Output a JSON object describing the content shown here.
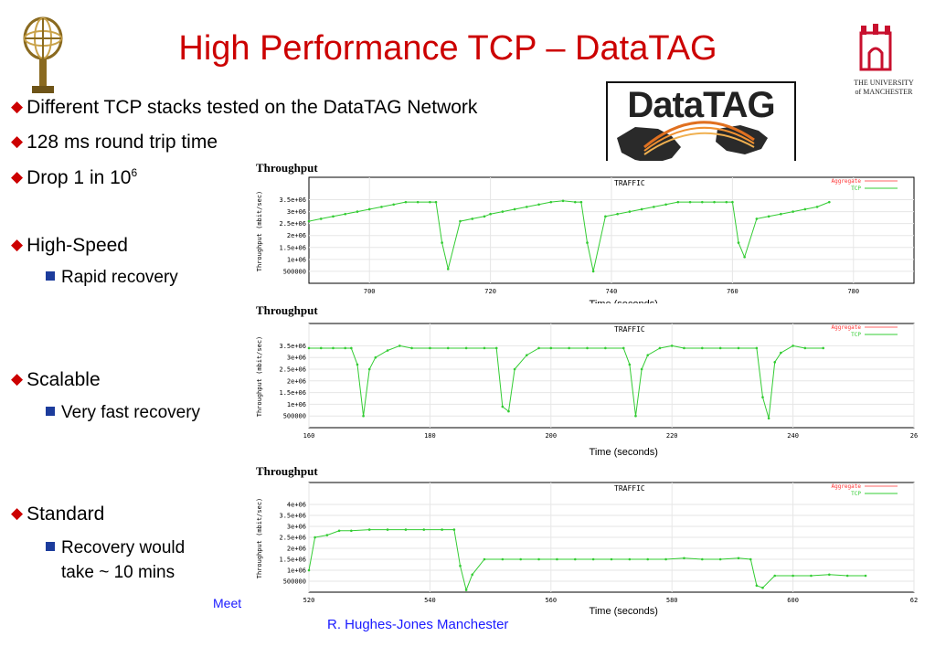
{
  "slide": {
    "title": "High Performance TCP – DataTAG",
    "bullets": [
      {
        "text": "Different TCP stacks tested on the DataTAG Network"
      },
      {
        "text": "128 ms round trip time"
      },
      {
        "text": "Drop 1 in 10",
        "sup": "6"
      },
      {
        "text": "High-Speed"
      },
      {
        "text": "Scalable"
      },
      {
        "text": "Standard"
      }
    ],
    "subbullets": [
      {
        "text": "Rapid recovery"
      },
      {
        "text": "Very fast recovery"
      },
      {
        "text": "Recovery would"
      },
      {
        "text": "take ~ 10 mins"
      }
    ],
    "footer_left": "Meet",
    "footer_center": "R. Hughes-Jones  Manchester",
    "datatag_logo_text": "DataTAG",
    "university_lines": [
      "THE UNIVERSITY",
      "of MANCHESTER"
    ],
    "colors": {
      "title": "#cc0000",
      "bullet_marker": "#cc0000",
      "sub_marker": "#1c3c9c",
      "footer": "#1a1aff",
      "tcp_line": "#33cc33",
      "aggregate_line": "#ff6666"
    }
  },
  "chart_data": [
    {
      "type": "line",
      "panel_label": "Throughput",
      "title": "TRAFFIC",
      "xlabel": "Time (seconds)",
      "ylabel": "Throughput (mbit/sec)",
      "xlim": [
        690,
        790
      ],
      "ylim": [
        0,
        3750000
      ],
      "xticks": [
        "700",
        "720",
        "740",
        "760",
        "780"
      ],
      "yticks": [
        "500000",
        "1e+06",
        "1.5e+06",
        "2e+06",
        "2.5e+06",
        "3e+06",
        "3.5e+06"
      ],
      "legend": [
        "Aggregate",
        "TCP"
      ],
      "series": [
        {
          "name": "TCP",
          "x": [
            690,
            692,
            694,
            696,
            698,
            700,
            702,
            704,
            706,
            708,
            710,
            711,
            712,
            713,
            715,
            717,
            719,
            720,
            722,
            724,
            726,
            728,
            730,
            732,
            734,
            735,
            736,
            737,
            739,
            741,
            743,
            745,
            747,
            749,
            751,
            753,
            755,
            757,
            759,
            760,
            761,
            762,
            764,
            766,
            768,
            770,
            772,
            774,
            776
          ],
          "y": [
            2600000,
            2700000,
            2800000,
            2900000,
            3000000,
            3100000,
            3200000,
            3300000,
            3400000,
            3400000,
            3400000,
            3400000,
            1700000,
            600000,
            2600000,
            2700000,
            2800000,
            2900000,
            3000000,
            3100000,
            3200000,
            3300000,
            3400000,
            3450000,
            3400000,
            3400000,
            1700000,
            500000,
            2800000,
            2900000,
            3000000,
            3100000,
            3200000,
            3300000,
            3400000,
            3400000,
            3400000,
            3400000,
            3400000,
            3400000,
            1700000,
            1100000,
            2700000,
            2800000,
            2900000,
            3000000,
            3100000,
            3200000,
            3400000
          ]
        }
      ]
    },
    {
      "type": "line",
      "panel_label": "Throughput",
      "title": "TRAFFIC",
      "xlabel": "Time (seconds)",
      "ylabel": "Throughput (mbit/sec)",
      "xlim": [
        160,
        260
      ],
      "ylim": [
        0,
        3750000
      ],
      "xticks": [
        "160",
        "180",
        "200",
        "220",
        "240",
        "26"
      ],
      "yticks": [
        "500000",
        "1e+06",
        "1.5e+06",
        "2e+06",
        "2.5e+06",
        "3e+06",
        "3.5e+06"
      ],
      "legend": [
        "Aggregate",
        "TCP"
      ],
      "series": [
        {
          "name": "TCP",
          "x": [
            160,
            162,
            164,
            166,
            167,
            168,
            169,
            170,
            171,
            173,
            175,
            177,
            180,
            183,
            186,
            189,
            191,
            192,
            193,
            194,
            196,
            198,
            200,
            203,
            206,
            209,
            212,
            213,
            214,
            215,
            216,
            218,
            220,
            222,
            225,
            228,
            231,
            234,
            235,
            236,
            237,
            238,
            240,
            242,
            245
          ],
          "y": [
            3400000,
            3400000,
            3400000,
            3400000,
            3400000,
            2700000,
            500000,
            2500000,
            3000000,
            3300000,
            3500000,
            3400000,
            3400000,
            3400000,
            3400000,
            3400000,
            3400000,
            900000,
            700000,
            2500000,
            3100000,
            3400000,
            3400000,
            3400000,
            3400000,
            3400000,
            3400000,
            2700000,
            500000,
            2500000,
            3100000,
            3400000,
            3500000,
            3400000,
            3400000,
            3400000,
            3400000,
            3400000,
            1300000,
            400000,
            2800000,
            3200000,
            3500000,
            3400000,
            3400000
          ]
        }
      ]
    },
    {
      "type": "line",
      "panel_label": "Throughput",
      "title": "TRAFFIC",
      "xlabel": "Time (seconds)",
      "ylabel": "Throughput (mbit/sec)",
      "xlim": [
        520,
        620
      ],
      "ylim": [
        0,
        4250000
      ],
      "xticks": [
        "520",
        "540",
        "560",
        "580",
        "600",
        "62"
      ],
      "yticks": [
        "500000",
        "1e+06",
        "1.5e+06",
        "2e+06",
        "2.5e+06",
        "3e+06",
        "3.5e+06",
        "4e+06"
      ],
      "legend": [
        "Aggregate",
        "TCP"
      ],
      "series": [
        {
          "name": "TCP",
          "x": [
            520,
            521,
            523,
            525,
            527,
            530,
            533,
            536,
            539,
            542,
            544,
            545,
            546,
            547,
            549,
            552,
            555,
            558,
            561,
            564,
            567,
            570,
            573,
            576,
            579,
            582,
            585,
            588,
            591,
            593,
            594,
            595,
            597,
            600,
            603,
            606,
            609,
            612
          ],
          "y": [
            1000000,
            2500000,
            2600000,
            2800000,
            2800000,
            2850000,
            2850000,
            2850000,
            2850000,
            2850000,
            2850000,
            1200000,
            100000,
            800000,
            1500000,
            1500000,
            1500000,
            1500000,
            1500000,
            1500000,
            1500000,
            1500000,
            1500000,
            1500000,
            1500000,
            1550000,
            1500000,
            1500000,
            1550000,
            1500000,
            300000,
            200000,
            750000,
            750000,
            750000,
            800000,
            750000,
            750000
          ]
        }
      ]
    }
  ]
}
